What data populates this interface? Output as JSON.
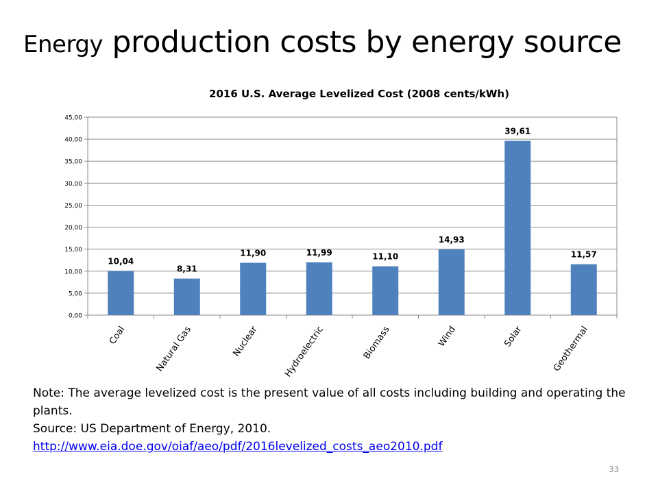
{
  "slide": {
    "title_part1": "Energy",
    "title_part2": "production costs by energy source",
    "note": "Note: The average levelized cost is the present value of all costs including building and operating the plants.",
    "source": "Source: US Department of Energy, 2010.",
    "link": "http://www.eia.doe.gov/oiaf/aeo/pdf/2016levelized_costs_aeo2010.pdf",
    "page_number": "33"
  },
  "chart_data": {
    "type": "bar",
    "title": "2016 U.S. Average Levelized Cost (2008 cents/kWh)",
    "xlabel": "",
    "ylabel": "",
    "categories": [
      "Coal",
      "Natural Gas",
      "Nuclear",
      "Hydroelectric",
      "Biomass",
      "Wind",
      "Solar",
      "Geothermal"
    ],
    "values": [
      10.04,
      8.31,
      11.9,
      11.99,
      11.1,
      14.93,
      39.61,
      11.57
    ],
    "value_labels": [
      "10,04",
      "8,31",
      "11,90",
      "11,99",
      "11,10",
      "14,93",
      "39,61",
      "11,57"
    ],
    "ylim": [
      0,
      45
    ],
    "yticks": [
      "0,00",
      "5,00",
      "10,00",
      "15,00",
      "20,00",
      "25,00",
      "30,00",
      "35,00",
      "40,00",
      "45,00"
    ],
    "grid": true,
    "bar_color": "#4f81bd",
    "legend": "none"
  }
}
